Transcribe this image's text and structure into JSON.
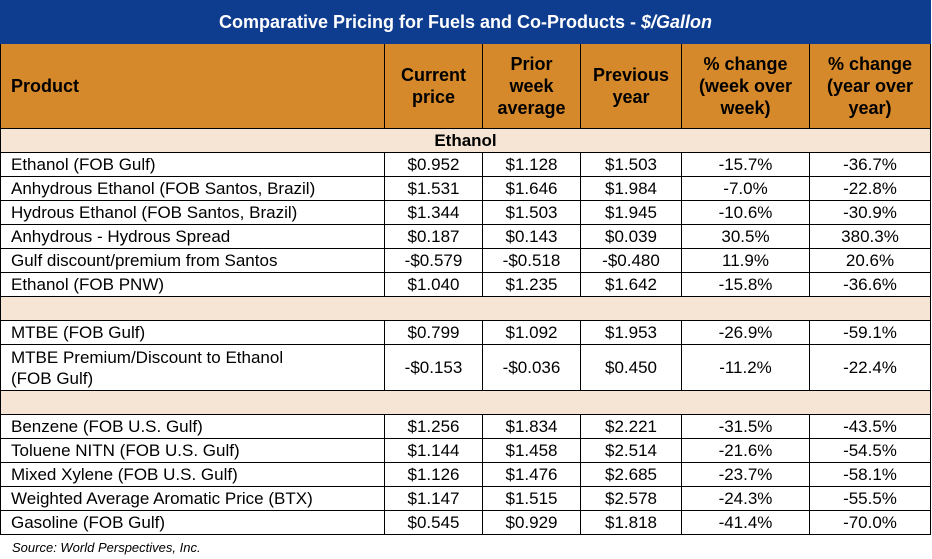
{
  "title": "Comparative Pricing for Fuels and Co-Products - ",
  "title_unit": "$/Gallon",
  "headers": {
    "product": "Product",
    "current_1": "Current",
    "current_2": "price",
    "prior_1": "Prior",
    "prior_2": "week",
    "prior_3": "average",
    "prev_1": "Previous",
    "prev_2": "year",
    "wow_1": "% change",
    "wow_2": "(week over",
    "wow_3": "week)",
    "yoy_1": "% change",
    "yoy_2": "(year over",
    "yoy_3": "year)"
  },
  "section_ethanol": "Ethanol",
  "ethanol_rows": [
    {
      "product": "Ethanol (FOB Gulf)",
      "current": "$0.952",
      "prior": "$1.128",
      "prev": "$1.503",
      "wow": "-15.7%",
      "yoy": "-36.7%"
    },
    {
      "product": "Anhydrous Ethanol (FOB Santos, Brazil)",
      "current": "$1.531",
      "prior": "$1.646",
      "prev": "$1.984",
      "wow": "-7.0%",
      "yoy": "-22.8%"
    },
    {
      "product": "Hydrous Ethanol (FOB Santos, Brazil)",
      "current": "$1.344",
      "prior": "$1.503",
      "prev": "$1.945",
      "wow": "-10.6%",
      "yoy": "-30.9%"
    },
    {
      "product": "Anhydrous - Hydrous Spread",
      "current": "$0.187",
      "prior": "$0.143",
      "prev": "$0.039",
      "wow": "30.5%",
      "yoy": "380.3%"
    },
    {
      "product": "Gulf discount/premium from Santos",
      "current": "-$0.579",
      "prior": "-$0.518",
      "prev": "-$0.480",
      "wow": "11.9%",
      "yoy": "20.6%"
    },
    {
      "product": "Ethanol (FOB PNW)",
      "current": "$1.040",
      "prior": "$1.235",
      "prev": "$1.642",
      "wow": "-15.8%",
      "yoy": "-36.6%"
    }
  ],
  "mtbe_rows": [
    {
      "product": "MTBE (FOB Gulf)",
      "current": "$0.799",
      "prior": "$1.092",
      "prev": "$1.953",
      "wow": "-26.9%",
      "yoy": "-59.1%"
    },
    {
      "product_1": "MTBE Premium/Discount to Ethanol",
      "product_2": "(FOB Gulf)",
      "current": "-$0.153",
      "prior": "-$0.036",
      "prev": "$0.450",
      "wow": "-11.2%",
      "yoy": "-22.4%"
    }
  ],
  "aromatic_rows": [
    {
      "product": "Benzene (FOB U.S. Gulf)",
      "current": "$1.256",
      "prior": "$1.834",
      "prev": "$2.221",
      "wow": "-31.5%",
      "yoy": "-43.5%"
    },
    {
      "product": "Toluene NITN (FOB U.S. Gulf)",
      "current": "$1.144",
      "prior": "$1.458",
      "prev": "$2.514",
      "wow": "-21.6%",
      "yoy": "-54.5%"
    },
    {
      "product": "Mixed Xylene (FOB U.S. Gulf)",
      "current": "$1.126",
      "prior": "$1.476",
      "prev": "$2.685",
      "wow": "-23.7%",
      "yoy": "-58.1%"
    },
    {
      "product": "Weighted Average Aromatic Price (BTX)",
      "current": "$1.147",
      "prior": "$1.515",
      "prev": "$2.578",
      "wow": "-24.3%",
      "yoy": "-55.5%"
    },
    {
      "product": "Gasoline (FOB Gulf)",
      "current": "$0.545",
      "prior": "$0.929",
      "prev": "$1.818",
      "wow": "-41.4%",
      "yoy": "-70.0%"
    }
  ],
  "source": "Source: World Perspectives, Inc.",
  "colors": {
    "title_bg": "#0e3d8f",
    "header_bg": "#d6892a",
    "section_bg": "#f6e5d5"
  }
}
